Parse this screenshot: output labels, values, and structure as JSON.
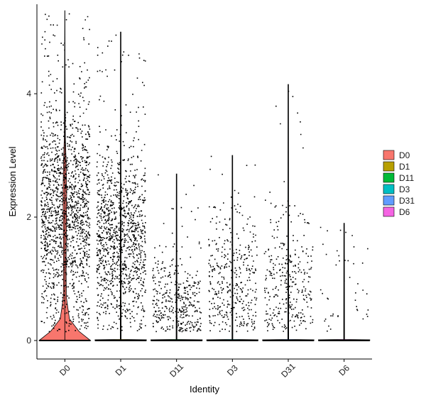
{
  "chart_data": {
    "type": "violin",
    "title": "",
    "xlabel": "Identity",
    "ylabel": "Expression Level",
    "ylim": [
      -0.3,
      5.45
    ],
    "yticks": [
      0,
      2,
      4
    ],
    "categories": [
      "D0",
      "D1",
      "D11",
      "D3",
      "D31",
      "D6"
    ],
    "colors": [
      "#F8766D",
      "#B79F00",
      "#00BA38",
      "#00BFC4",
      "#619CFF",
      "#F564E3"
    ],
    "x_tick_rotation": -45,
    "grid": false,
    "legend": {
      "position": "right",
      "entries": [
        "D0",
        "D1",
        "D11",
        "D3",
        "D31",
        "D6"
      ]
    },
    "points_overlay": true,
    "groups": [
      {
        "name": "D0",
        "max": 5.35,
        "point_density": 1.0,
        "spread_center": 2.0,
        "spread_sd": 0.9,
        "zero_fraction": 0.1,
        "n_points": 1500,
        "violin_profile": [
          [
            0,
            1.0
          ],
          [
            0.15,
            0.55
          ],
          [
            0.35,
            0.18
          ],
          [
            0.7,
            0.06
          ],
          [
            1.2,
            0.05
          ],
          [
            1.8,
            0.06
          ],
          [
            2.4,
            0.07
          ],
          [
            2.9,
            0.05
          ],
          [
            3.3,
            0.02
          ],
          [
            5.35,
            0.0
          ]
        ]
      },
      {
        "name": "D1",
        "max": 5.0,
        "point_density": 0.75,
        "spread_center": 1.6,
        "spread_sd": 0.75,
        "zero_fraction": 0.55,
        "n_points": 1150,
        "violin_profile": []
      },
      {
        "name": "D11",
        "max": 2.7,
        "point_density": 0.4,
        "spread_center": 0.6,
        "spread_sd": 0.4,
        "zero_fraction": 0.85,
        "n_points": 380,
        "violin_profile": []
      },
      {
        "name": "D3",
        "max": 3.0,
        "point_density": 0.35,
        "spread_center": 0.9,
        "spread_sd": 0.55,
        "zero_fraction": 0.85,
        "n_points": 380,
        "violin_profile": []
      },
      {
        "name": "D31",
        "max": 4.15,
        "point_density": 0.3,
        "spread_center": 0.9,
        "spread_sd": 0.6,
        "zero_fraction": 0.85,
        "n_points": 320,
        "violin_profile": []
      },
      {
        "name": "D6",
        "max": 1.9,
        "point_density": 0.08,
        "spread_center": 0.9,
        "spread_sd": 0.5,
        "zero_fraction": 0.95,
        "n_points": 45,
        "violin_profile": []
      }
    ]
  }
}
